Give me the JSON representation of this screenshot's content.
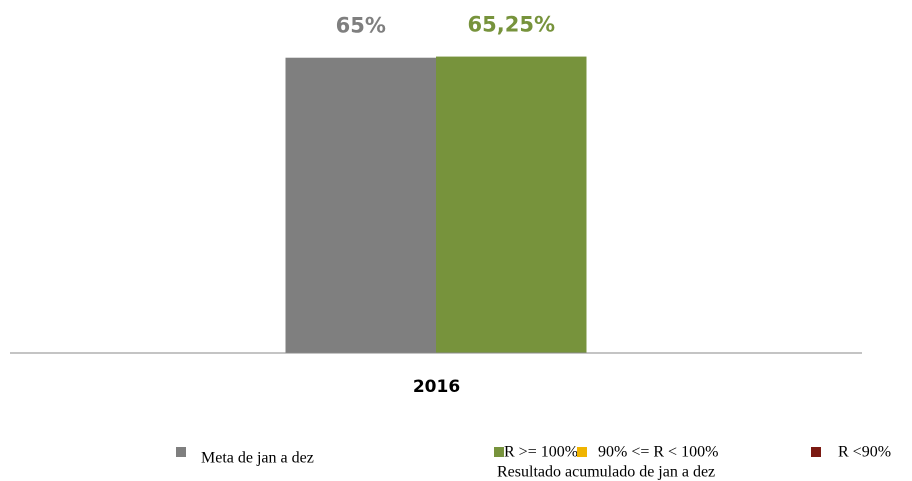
{
  "chart_data": {
    "type": "bar",
    "categories": [
      "2016"
    ],
    "series": [
      {
        "name": "Meta de jan a dez",
        "color": "#7f7f7f",
        "values": [
          65
        ],
        "value_labels": [
          "65%"
        ]
      },
      {
        "name": "Resultado acumulado de jan a dez",
        "color": "#77933c",
        "values": [
          65.25
        ],
        "value_labels": [
          "65,25%"
        ]
      }
    ],
    "legend_items": [
      {
        "label": "R >= 100%",
        "color": "#77933c"
      },
      {
        "label": "90% <= R < 100%",
        "color": "#f0b400"
      },
      {
        "label": "R <90%",
        "color": "#7b1a12"
      }
    ],
    "ylim": [
      0,
      70
    ]
  }
}
